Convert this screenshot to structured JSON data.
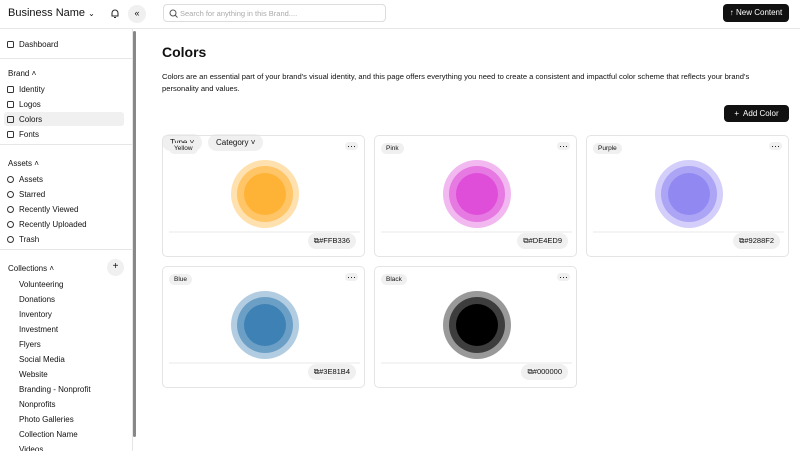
{
  "header": {
    "brand": "Business Name",
    "search_placeholder": "Search for anything in this Brand....",
    "new_content": "New Content"
  },
  "sidebar": {
    "dashboard": "Dashboard",
    "sections": [
      {
        "title": "Brand",
        "items": [
          "Identity",
          "Logos",
          "Colors",
          "Fonts"
        ]
      },
      {
        "title": "Assets",
        "items": [
          "Assets",
          "Starred",
          "Recently Viewed",
          "Recently Uploaded",
          "Trash"
        ]
      },
      {
        "title": "Collections",
        "items": [
          "Volunteering",
          "Donations",
          "Inventory",
          "Investment",
          "Flyers",
          "Social Media",
          "Website",
          "Branding - Nonprofit",
          "Nonprofits",
          "Photo Galleries",
          "Collection Name",
          "Videos"
        ]
      }
    ]
  },
  "main": {
    "title": "Colors",
    "description": "Colors are an essential part of your brand's visual identity, and this page offers everything you need to create a consistent and impactful color scheme that reflects your brand's personality and values.",
    "filters": [
      "Type",
      "Category"
    ],
    "add_button": "Add Color",
    "colors": [
      {
        "name": "Yellow",
        "hex": "#FFB336"
      },
      {
        "name": "Pink",
        "hex": "#DE4ED9"
      },
      {
        "name": "Purple",
        "hex": "#9288F2"
      },
      {
        "name": "Blue",
        "hex": "#3E81B4"
      },
      {
        "name": "Black",
        "hex": "#000000"
      }
    ]
  }
}
